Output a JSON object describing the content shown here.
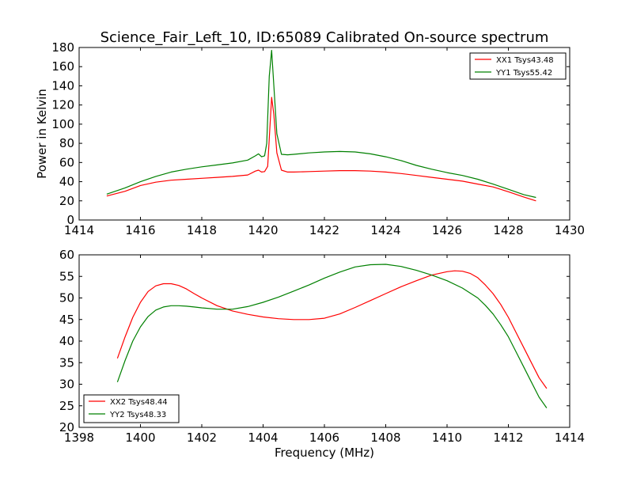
{
  "figure": {
    "title": "Science_Fair_Left_10, ID:65089 Calibrated On-source spectrum"
  },
  "chart_data": [
    {
      "type": "line",
      "title": "Science_Fair_Left_10, ID:65089 Calibrated On-source spectrum",
      "xlabel": "",
      "ylabel": "Power in Kelvin",
      "xlim": [
        1414,
        1430
      ],
      "ylim": [
        0,
        180
      ],
      "xticks": [
        1414,
        1416,
        1418,
        1420,
        1422,
        1424,
        1426,
        1428,
        1430
      ],
      "yticks": [
        0,
        20,
        40,
        60,
        80,
        100,
        120,
        140,
        160,
        180
      ],
      "legend": "upper right",
      "grid": false,
      "series": [
        {
          "name": "XX1 Tsys43.48",
          "color": "#ff0000",
          "x": [
            1414.9,
            1415.5,
            1416.0,
            1416.5,
            1417.0,
            1417.5,
            1418.0,
            1418.5,
            1419.0,
            1419.5,
            1419.75,
            1419.85,
            1419.95,
            1420.05,
            1420.15,
            1420.22,
            1420.28,
            1420.35,
            1420.45,
            1420.6,
            1420.8,
            1421.0,
            1421.5,
            1422.0,
            1422.5,
            1423.0,
            1423.5,
            1424.0,
            1424.5,
            1425.0,
            1425.5,
            1426.0,
            1426.5,
            1427.0,
            1427.5,
            1428.0,
            1428.5,
            1428.9
          ],
          "y": [
            25,
            30,
            36,
            39.5,
            41.5,
            42.5,
            43.5,
            44.5,
            45.5,
            47,
            51,
            52,
            50,
            50.5,
            56,
            95,
            128,
            110,
            70,
            52,
            50,
            50,
            50.5,
            51,
            51.5,
            51.5,
            51,
            50,
            48.5,
            46.5,
            44.5,
            42.5,
            40.5,
            37.5,
            34.5,
            29.5,
            24,
            20
          ]
        },
        {
          "name": "YY1 Tsys55.42",
          "color": "#008000",
          "x": [
            1414.9,
            1415.5,
            1416.0,
            1416.5,
            1417.0,
            1417.5,
            1418.0,
            1418.5,
            1419.0,
            1419.5,
            1419.75,
            1419.85,
            1419.95,
            1420.05,
            1420.12,
            1420.2,
            1420.28,
            1420.35,
            1420.45,
            1420.6,
            1420.8,
            1421.0,
            1421.5,
            1422.0,
            1422.5,
            1423.0,
            1423.5,
            1424.0,
            1424.5,
            1425.0,
            1425.5,
            1426.0,
            1426.5,
            1427.0,
            1427.5,
            1428.0,
            1428.5,
            1428.9
          ],
          "y": [
            27,
            33.5,
            40,
            45.5,
            50,
            53,
            55.5,
            57.5,
            59.5,
            62.5,
            67,
            69,
            66,
            67,
            80,
            150,
            177,
            140,
            90,
            68.5,
            68,
            68.5,
            70,
            71,
            71.5,
            71,
            69,
            66,
            62,
            57,
            53,
            49.5,
            46.5,
            42.5,
            37.5,
            32,
            26.5,
            23.5
          ]
        }
      ]
    },
    {
      "type": "line",
      "title": "",
      "xlabel": "Frequency (MHz)",
      "ylabel": "",
      "xlim": [
        1398,
        1414
      ],
      "ylim": [
        20,
        60
      ],
      "xticks": [
        1398,
        1400,
        1402,
        1404,
        1406,
        1408,
        1410,
        1412,
        1414
      ],
      "yticks": [
        20,
        25,
        30,
        35,
        40,
        45,
        50,
        55,
        60
      ],
      "legend": "lower left",
      "grid": false,
      "series": [
        {
          "name": "XX2 Tsys48.44",
          "color": "#ff0000",
          "x": [
            1399.25,
            1399.5,
            1399.75,
            1400.0,
            1400.25,
            1400.5,
            1400.75,
            1401.0,
            1401.25,
            1401.5,
            1401.75,
            1402.0,
            1402.5,
            1403.0,
            1403.5,
            1404.0,
            1404.5,
            1405.0,
            1405.5,
            1406.0,
            1406.5,
            1407.0,
            1407.5,
            1408.0,
            1408.5,
            1409.0,
            1409.5,
            1410.0,
            1410.25,
            1410.5,
            1410.75,
            1411.0,
            1411.25,
            1411.5,
            1411.75,
            1412.0,
            1412.25,
            1412.5,
            1412.75,
            1413.0,
            1413.25
          ],
          "y": [
            36,
            41,
            45.5,
            49,
            51.5,
            52.8,
            53.3,
            53.3,
            52.9,
            52.1,
            51,
            50,
            48.2,
            47,
            46.2,
            45.6,
            45.2,
            45,
            45,
            45.3,
            46.3,
            47.8,
            49.4,
            51,
            52.6,
            54,
            55.3,
            56.1,
            56.3,
            56.2,
            55.7,
            54.7,
            53,
            51,
            48.5,
            45.5,
            42,
            38.5,
            35,
            31.5,
            29
          ]
        },
        {
          "name": "YY2 Tsys48.33",
          "color": "#008000",
          "x": [
            1399.25,
            1399.5,
            1399.75,
            1400.0,
            1400.25,
            1400.5,
            1400.75,
            1401.0,
            1401.25,
            1401.5,
            1401.75,
            1402.0,
            1402.5,
            1403.0,
            1403.5,
            1404.0,
            1404.5,
            1405.0,
            1405.5,
            1406.0,
            1406.5,
            1407.0,
            1407.5,
            1408.0,
            1408.5,
            1409.0,
            1409.5,
            1410.0,
            1410.5,
            1411.0,
            1411.25,
            1411.5,
            1411.75,
            1412.0,
            1412.25,
            1412.5,
            1412.75,
            1413.0,
            1413.25
          ],
          "y": [
            30.5,
            35.5,
            40,
            43.3,
            45.7,
            47.2,
            47.9,
            48.2,
            48.2,
            48.1,
            47.9,
            47.7,
            47.4,
            47.4,
            48,
            49,
            50.2,
            51.6,
            53,
            54.6,
            56,
            57.2,
            57.7,
            57.8,
            57.3,
            56.4,
            55.3,
            54,
            52.3,
            50,
            48.3,
            46.3,
            43.8,
            41,
            37.5,
            34,
            30.5,
            27,
            24.5
          ]
        }
      ]
    }
  ]
}
